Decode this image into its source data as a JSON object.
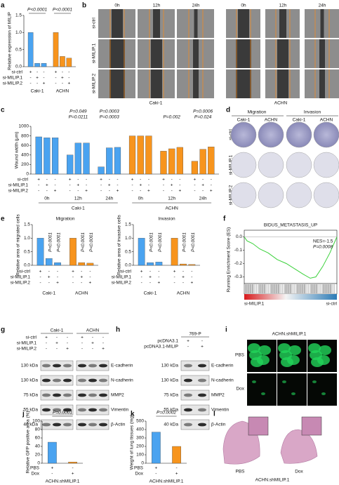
{
  "panels": {
    "a": {
      "letter": "a",
      "ylabel": "Relative expression of MILIP",
      "ylim": [
        0,
        1.5
      ],
      "yticks": [
        {
          "value": 0,
          "label": "0.0"
        },
        {
          "value": 0.5,
          "label": "0.5"
        },
        {
          "value": 1,
          "label": "1.0"
        },
        {
          "value": 1.5,
          "label": "1.5"
        }
      ],
      "bars": [
        {
          "color": "#4aa3f0",
          "values": [
            1,
            0.1,
            0.1
          ]
        },
        {
          "color": "#f7941d",
          "values": [
            1,
            0.3,
            0.25
          ]
        }
      ],
      "pvalues": [
        "P<0.0001",
        "P<0.0001"
      ],
      "rows": [
        "si-ctrl",
        "si-MILIP.1",
        "si-MILIP.2"
      ],
      "signs": [
        [
          "+",
          "-",
          "-",
          "+",
          "-",
          "-"
        ],
        [
          "-",
          "+",
          "-",
          "-",
          "+",
          "-"
        ],
        [
          "-",
          "-",
          "+",
          "-",
          "-",
          "+"
        ]
      ],
      "groups": [
        "Caki-1",
        "ACHN"
      ]
    },
    "b": {
      "letter": "b",
      "times": [
        "0h",
        "12h",
        "24h",
        "0h",
        "12h",
        "24h"
      ],
      "rows": [
        "si-ctrl",
        "si-MILIP.1",
        "si-MILIP.2"
      ],
      "groups": [
        "Caki-1",
        "ACHN"
      ]
    },
    "c": {
      "letter": "c",
      "ylabel": "Wound width (μm)",
      "ylim": [
        0,
        1000
      ],
      "yticks": [
        0,
        200,
        400,
        600,
        800,
        1000
      ],
      "bars": [
        {
          "color": "#4aa3f0",
          "values": [
            780,
            760,
            760
          ]
        },
        {
          "color": "#4aa3f0",
          "values": [
            400,
            650,
            650
          ]
        },
        {
          "color": "#4aa3f0",
          "values": [
            150,
            550,
            560
          ]
        },
        {
          "color": "#f7941d",
          "values": [
            800,
            800,
            800
          ]
        },
        {
          "color": "#f7941d",
          "values": [
            480,
            530,
            560
          ]
        },
        {
          "color": "#f7941d",
          "values": [
            270,
            520,
            570
          ]
        }
      ],
      "pvalues": [
        "P=0.049",
        "P=0.0211",
        "P=0.0003",
        "P=0.0003",
        "P=0.002",
        "P=0.0006",
        "P=0.024"
      ],
      "rows": [
        "si-ctrl",
        "si-MILIP.1",
        "si-MILIP.2"
      ],
      "signs": [
        [
          "+",
          "-",
          "-",
          "+",
          "-",
          "-",
          "+",
          "-",
          "-",
          "+",
          "-",
          "-",
          "+",
          "-",
          "-",
          "+",
          "-",
          "-"
        ],
        [
          "-",
          "+",
          "-",
          "-",
          "+",
          "-",
          "-",
          "+",
          "-",
          "-",
          "+",
          "-",
          "-",
          "+",
          "-",
          "-",
          "+",
          "-"
        ],
        [
          "-",
          "-",
          "+",
          "-",
          "-",
          "+",
          "-",
          "-",
          "+",
          "-",
          "-",
          "+",
          "-",
          "-",
          "+",
          "-",
          "-",
          "+"
        ]
      ],
      "times": [
        "0h",
        "12h",
        "24h",
        "0h",
        "12h",
        "24h"
      ],
      "groups": [
        "Caki-1",
        "ACHN"
      ]
    },
    "d": {
      "letter": "d",
      "assays": [
        "Migration",
        "Invasion"
      ],
      "cells": [
        "Caki-1",
        "ACHN",
        "Caki-1",
        "ACHN"
      ],
      "rows": [
        "si-ctrl",
        "si-MILIP.1",
        "si-MILIP.2"
      ]
    },
    "e": {
      "letter": "e",
      "charts": [
        {
          "title": "Migration",
          "ylabel": "Relative area of migrated cells",
          "ylim": [
            0,
            1.5
          ],
          "yticks": [
            {
              "value": 0,
              "label": "0.0"
            },
            {
              "value": 0.5,
              "label": "0.5"
            },
            {
              "value": 1,
              "label": "1.0"
            },
            {
              "value": 1.5,
              "label": "1.5"
            }
          ],
          "bars": [
            {
              "color": "#4aa3f0",
              "values": [
                1,
                0.25,
                0.1
              ]
            },
            {
              "color": "#f7941d",
              "values": [
                1,
                0.1,
                0.08
              ]
            }
          ],
          "pvalues": [
            "P<0.0001",
            "P<0.0001",
            "P<0.0001",
            "P<0.0001"
          ],
          "rows": [
            "si-ctrl",
            "si-MILIP.1",
            "si-MILIP.2"
          ],
          "signs": [
            [
              "+",
              "-",
              "-",
              "+",
              "-",
              "-"
            ],
            [
              "-",
              "+",
              "-",
              "-",
              "+",
              "-"
            ],
            [
              "-",
              "-",
              "+",
              "-",
              "-",
              "+"
            ]
          ],
          "groups": [
            "Caki-1",
            "ACHN"
          ]
        },
        {
          "title": "Invasion",
          "ylabel": "Relative area of invasive cells",
          "ylim": [
            0,
            1.5
          ],
          "yticks": [
            {
              "value": 0,
              "label": "0.0"
            },
            {
              "value": 0.5,
              "label": "0.5"
            },
            {
              "value": 1,
              "label": "1.0"
            },
            {
              "value": 1.5,
              "label": "1.5"
            }
          ],
          "bars": [
            {
              "color": "#4aa3f0",
              "values": [
                1,
                0.1,
                0.12
              ]
            },
            {
              "color": "#f7941d",
              "values": [
                1,
                0.05,
                0.03
              ]
            }
          ],
          "pvalues": [
            "P<0.0001",
            "P<0.0001",
            "P<0.0001",
            "P<0.0001"
          ],
          "rows": [
            "si-ctrl",
            "si-MILIP.1",
            "si-MILIP.2"
          ],
          "signs": [
            [
              "+",
              "-",
              "-",
              "+",
              "-",
              "-"
            ],
            [
              "-",
              "+",
              "-",
              "-",
              "+",
              "-"
            ],
            [
              "-",
              "-",
              "+",
              "-",
              "-",
              "+"
            ]
          ],
          "groups": [
            "Caki-1",
            "ACHN"
          ]
        }
      ]
    },
    "f": {
      "letter": "f",
      "title": "BIDUS_METASTASIS_UP",
      "nes": "NES=-1.5",
      "p": "P=0.0008",
      "ylabel": "Running Enrichment Score (ES)",
      "ylim": [
        -0.35,
        0.05
      ],
      "yticks": [
        {
          "value": 0,
          "label": "0.0"
        },
        -0.1,
        -0.2,
        -0.3
      ],
      "left": "si-MILIP.1",
      "right": "si-ctrl"
    },
    "g": {
      "letter": "g",
      "groups": [
        "Caki-1",
        "ACHN"
      ],
      "rows": [
        "si-ctrl",
        "si-MILIP.1",
        "si-MILIP.2"
      ],
      "signs": [
        [
          "+",
          "-",
          "-",
          "+",
          "-",
          "-"
        ],
        [
          "-",
          "+",
          "-",
          "-",
          "+",
          "-"
        ],
        [
          "-",
          "-",
          "+",
          "-",
          "-",
          "+"
        ]
      ],
      "sizes": [
        "130 kDa",
        "130 kDa",
        "75 kDa",
        "55 kDa",
        "40 kDa"
      ],
      "proteins": [
        "E-cadherin",
        "N-cadherin",
        "MMP2",
        "Vimentin",
        "β-Actin"
      ]
    },
    "h": {
      "letter": "h",
      "cell": "769-P",
      "rows": [
        "pcDNA3.1",
        "pcDNA3.1-MILIP"
      ],
      "signs": [
        [
          "+",
          "-"
        ],
        [
          "-",
          "+"
        ]
      ],
      "sizes": [
        "130 kDa",
        "130 kDa",
        "75 kDa",
        "55 kDa",
        "40 kDa"
      ],
      "proteins": [
        "E-cadherin",
        "N-cadherin",
        "MMP2",
        "Vimentin",
        "β-Actin"
      ]
    },
    "i": {
      "letter": "i",
      "title": "ACHN.shMILIP.1",
      "rows": [
        "PBS",
        "Dox"
      ]
    },
    "j": {
      "letter": "j",
      "ylabel": "Relative GFP positive area (%)",
      "ylim": [
        0,
        100
      ],
      "yticks": [
        0,
        20,
        40,
        60,
        80,
        100
      ],
      "bars": [
        {
          "color": "#4aa3f0",
          "values": [
            50
          ]
        },
        {
          "color": "#f7941d",
          "values": [
            3
          ]
        }
      ],
      "pvalues": [
        "P=0.0001"
      ],
      "rows": [
        "PBS",
        "Dox"
      ],
      "signs": [
        [
          "+",
          "-"
        ],
        [
          "-",
          "+"
        ]
      ],
      "caption": "ACHN.shMILIP.1"
    },
    "k": {
      "letter": "k",
      "ylabel": "Weight of lung tissues (mg)",
      "ylim": [
        0,
        500
      ],
      "yticks": [
        0,
        100,
        200,
        300,
        400,
        500
      ],
      "bars": [
        {
          "color": "#4aa3f0",
          "values": [
            370
          ]
        },
        {
          "color": "#f7941d",
          "values": [
            200
          ]
        }
      ],
      "pvalues": [
        "P=0.0002"
      ],
      "rows": [
        "PBS",
        "Dox"
      ],
      "signs": [
        [
          "+",
          "-"
        ],
        [
          "-",
          "+"
        ]
      ],
      "caption": "ACHN.shMILIP.1"
    },
    "l": {
      "letter": "l",
      "labels": [
        "PBS",
        "Dox"
      ],
      "caption": "ACHN.shMILIP.1"
    }
  }
}
